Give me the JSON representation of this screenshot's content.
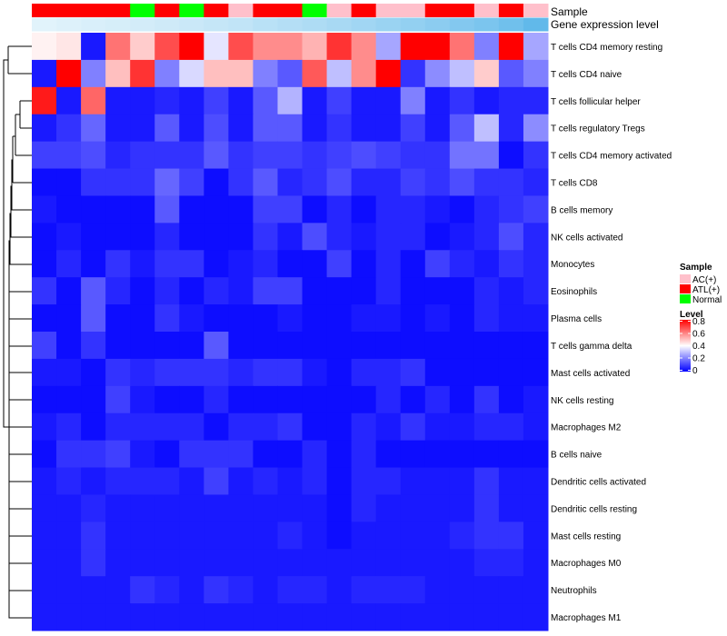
{
  "chart_data": {
    "type": "heatmap",
    "annotation_labels": {
      "sample": "Sample",
      "gene": "Gene expression level"
    },
    "sample_groups": [
      "ATL(+)",
      "ATL(+)",
      "ATL(+)",
      "ATL(+)",
      "Normal",
      "ATL(+)",
      "Normal",
      "ATL(+)",
      "AC(+)",
      "ATL(+)",
      "ATL(+)",
      "Normal",
      "AC(+)",
      "ATL(+)",
      "AC(+)",
      "AC(+)",
      "ATL(+)",
      "ATL(+)",
      "AC(+)",
      "ATL(+)",
      "AC(+)"
    ],
    "gene_expression": [
      0.02,
      0.05,
      0.08,
      0.1,
      0.12,
      0.15,
      0.18,
      0.22,
      0.25,
      0.3,
      0.34,
      0.38,
      0.42,
      0.47,
      0.52,
      0.57,
      0.62,
      0.68,
      0.74,
      0.82,
      0.92
    ],
    "rows": [
      "T cells CD4 memory resting",
      "T cells CD4 naive",
      "T cells follicular helper",
      "T cells regulatory  Tregs",
      "T cells CD4 memory activated",
      "T cells CD8",
      "B cells memory",
      "NK cells activated",
      "Monocytes",
      "Eosinophils",
      "Plasma cells",
      "T cells gamma delta",
      "Mast cells activated",
      "NK cells resting",
      "Macrophages M2",
      "B cells naive",
      "Dendritic cells activated",
      "Dendritic cells resting",
      "Mast cells resting",
      "Macrophages M0",
      "Neutrophils",
      "Macrophages M1"
    ],
    "values": [
      [
        0.42,
        0.44,
        0.04,
        0.62,
        0.48,
        0.68,
        0.8,
        0.36,
        0.68,
        0.58,
        0.58,
        0.52,
        0.72,
        0.58,
        0.26,
        0.8,
        0.8,
        0.62,
        0.2,
        0.8,
        0.26
      ],
      [
        0.04,
        0.8,
        0.2,
        0.5,
        0.72,
        0.2,
        0.34,
        0.5,
        0.5,
        0.2,
        0.14,
        0.66,
        0.3,
        0.58,
        0.8,
        0.08,
        0.22,
        0.3,
        0.48,
        0.14,
        0.2
      ],
      [
        0.76,
        0.04,
        0.64,
        0.04,
        0.04,
        0.06,
        0.04,
        0.1,
        0.04,
        0.14,
        0.28,
        0.04,
        0.1,
        0.04,
        0.04,
        0.2,
        0.04,
        0.08,
        0.04,
        0.06,
        0.06
      ],
      [
        0.04,
        0.08,
        0.16,
        0.04,
        0.04,
        0.14,
        0.04,
        0.12,
        0.04,
        0.14,
        0.14,
        0.04,
        0.08,
        0.04,
        0.04,
        0.1,
        0.04,
        0.14,
        0.3,
        0.06,
        0.22
      ],
      [
        0.1,
        0.1,
        0.12,
        0.06,
        0.08,
        0.08,
        0.08,
        0.14,
        0.08,
        0.1,
        0.1,
        0.08,
        0.1,
        0.12,
        0.1,
        0.08,
        0.08,
        0.18,
        0.18,
        0.02,
        0.08
      ],
      [
        0.02,
        0.02,
        0.08,
        0.08,
        0.08,
        0.16,
        0.1,
        0.02,
        0.08,
        0.14,
        0.06,
        0.08,
        0.12,
        0.06,
        0.06,
        0.1,
        0.08,
        0.12,
        0.08,
        0.08,
        0.06
      ],
      [
        0.04,
        0.02,
        0.02,
        0.02,
        0.02,
        0.14,
        0.02,
        0.02,
        0.02,
        0.1,
        0.1,
        0.02,
        0.06,
        0.02,
        0.06,
        0.06,
        0.04,
        0.02,
        0.06,
        0.08,
        0.1
      ],
      [
        0.02,
        0.04,
        0.02,
        0.02,
        0.02,
        0.06,
        0.02,
        0.02,
        0.02,
        0.08,
        0.04,
        0.12,
        0.06,
        0.04,
        0.06,
        0.06,
        0.02,
        0.04,
        0.06,
        0.12,
        0.06
      ],
      [
        0.02,
        0.06,
        0.02,
        0.08,
        0.04,
        0.08,
        0.08,
        0.02,
        0.04,
        0.06,
        0.02,
        0.02,
        0.1,
        0.02,
        0.06,
        0.02,
        0.1,
        0.06,
        0.04,
        0.08,
        0.06
      ],
      [
        0.08,
        0.02,
        0.14,
        0.06,
        0.02,
        0.06,
        0.02,
        0.06,
        0.04,
        0.1,
        0.1,
        0.02,
        0.02,
        0.02,
        0.06,
        0.02,
        0.02,
        0.02,
        0.06,
        0.04,
        0.06
      ],
      [
        0.02,
        0.02,
        0.14,
        0.02,
        0.02,
        0.08,
        0.04,
        0.02,
        0.02,
        0.02,
        0.04,
        0.02,
        0.02,
        0.04,
        0.04,
        0.02,
        0.04,
        0.02,
        0.06,
        0.04,
        0.04
      ],
      [
        0.1,
        0.02,
        0.08,
        0.02,
        0.02,
        0.02,
        0.02,
        0.14,
        0.02,
        0.02,
        0.02,
        0.02,
        0.02,
        0.02,
        0.02,
        0.02,
        0.02,
        0.02,
        0.02,
        0.02,
        0.02
      ],
      [
        0.04,
        0.04,
        0.02,
        0.08,
        0.06,
        0.08,
        0.08,
        0.08,
        0.06,
        0.08,
        0.08,
        0.04,
        0.02,
        0.06,
        0.06,
        0.08,
        0.02,
        0.02,
        0.02,
        0.02,
        0.02
      ],
      [
        0.02,
        0.02,
        0.02,
        0.1,
        0.04,
        0.02,
        0.02,
        0.06,
        0.02,
        0.02,
        0.02,
        0.02,
        0.02,
        0.02,
        0.06,
        0.02,
        0.06,
        0.02,
        0.08,
        0.02,
        0.04
      ],
      [
        0.04,
        0.06,
        0.02,
        0.06,
        0.06,
        0.06,
        0.06,
        0.02,
        0.06,
        0.06,
        0.08,
        0.02,
        0.02,
        0.06,
        0.04,
        0.08,
        0.04,
        0.04,
        0.06,
        0.06,
        0.04
      ],
      [
        0.02,
        0.08,
        0.08,
        0.1,
        0.04,
        0.02,
        0.08,
        0.08,
        0.08,
        0.02,
        0.02,
        0.06,
        0.02,
        0.06,
        0.02,
        0.02,
        0.02,
        0.02,
        0.02,
        0.02,
        0.02
      ],
      [
        0.04,
        0.06,
        0.04,
        0.06,
        0.06,
        0.06,
        0.04,
        0.1,
        0.04,
        0.06,
        0.04,
        0.06,
        0.02,
        0.06,
        0.06,
        0.04,
        0.04,
        0.04,
        0.08,
        0.04,
        0.04
      ],
      [
        0.04,
        0.04,
        0.06,
        0.04,
        0.04,
        0.04,
        0.04,
        0.04,
        0.04,
        0.04,
        0.04,
        0.04,
        0.02,
        0.06,
        0.04,
        0.04,
        0.04,
        0.04,
        0.08,
        0.04,
        0.04
      ],
      [
        0.04,
        0.04,
        0.08,
        0.04,
        0.04,
        0.04,
        0.04,
        0.04,
        0.04,
        0.04,
        0.06,
        0.04,
        0.02,
        0.04,
        0.04,
        0.04,
        0.04,
        0.06,
        0.08,
        0.08,
        0.04
      ],
      [
        0.04,
        0.04,
        0.08,
        0.04,
        0.04,
        0.04,
        0.04,
        0.04,
        0.04,
        0.04,
        0.04,
        0.04,
        0.04,
        0.04,
        0.04,
        0.04,
        0.04,
        0.04,
        0.06,
        0.06,
        0.04
      ],
      [
        0.04,
        0.04,
        0.04,
        0.04,
        0.08,
        0.06,
        0.04,
        0.08,
        0.06,
        0.04,
        0.06,
        0.06,
        0.04,
        0.06,
        0.06,
        0.06,
        0.04,
        0.04,
        0.04,
        0.04,
        0.04
      ],
      [
        0.04,
        0.04,
        0.04,
        0.04,
        0.04,
        0.04,
        0.04,
        0.04,
        0.04,
        0.04,
        0.04,
        0.04,
        0.04,
        0.04,
        0.04,
        0.04,
        0.04,
        0.04,
        0.04,
        0.04,
        0.04
      ]
    ],
    "legend": {
      "sample_title": "Sample",
      "sample_entries": [
        {
          "label": "AC(+)",
          "color": "#ffc0cb"
        },
        {
          "label": "ATL(+)",
          "color": "#ff0000"
        },
        {
          "label": "Normal",
          "color": "#00ff00"
        }
      ],
      "level_title": "Level",
      "level_ticks": [
        "0.8",
        "0.6",
        "0.4",
        "0.2",
        "0"
      ],
      "level_values": [
        0.8,
        0.6,
        0.4,
        0.2,
        0
      ],
      "range": [
        0,
        0.8
      ]
    },
    "colors": {
      "low": "#0000ff",
      "mid": "#ffffff",
      "high": "#ff0000",
      "gene_low": "#e4f4fb",
      "gene_high": "#56b4e9"
    }
  }
}
